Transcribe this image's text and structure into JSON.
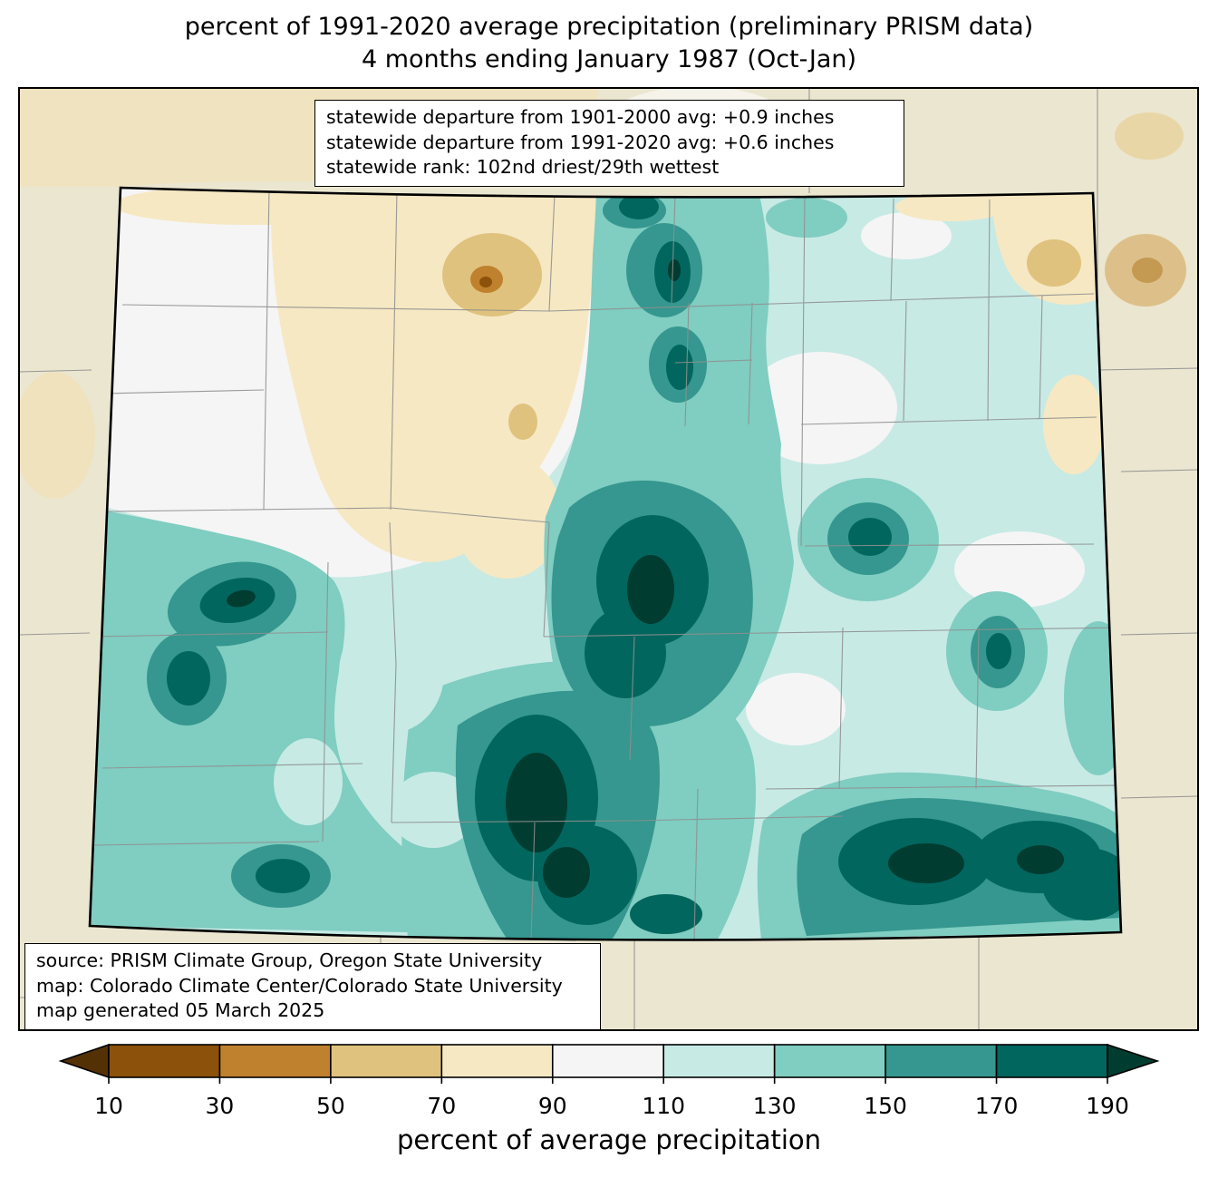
{
  "title": {
    "line1": "percent of 1991-2020 average precipitation (preliminary PRISM data)",
    "line2": "4 months ending January 1987 (Oct-Jan)"
  },
  "stats_box": {
    "lines": [
      "statewide departure from 1901-2000 avg: +0.9 inches",
      "statewide departure from 1991-2020 avg: +0.6 inches",
      "statewide rank: 102nd driest/29th wettest"
    ]
  },
  "source_box": {
    "lines": [
      "source: PRISM Climate Group, Oregon State University",
      "map: Colorado Climate Center/Colorado State University",
      "map generated 05 March 2025"
    ]
  },
  "colorbar": {
    "label": "percent of average precipitation",
    "ticks": [
      10,
      30,
      50,
      70,
      90,
      110,
      130,
      150,
      170,
      190
    ],
    "colors": [
      "#543005",
      "#8c510a",
      "#bf812d",
      "#dfc27d",
      "#f6e8c3",
      "#f5f5f5",
      "#c7eae5",
      "#80cdc1",
      "#35978f",
      "#01665e",
      "#003c30"
    ],
    "extend": "both"
  },
  "map": {
    "outside_fill": "#ebe6d0",
    "county_line_color": "#8f8f8f",
    "state_border_color": "#000000"
  }
}
